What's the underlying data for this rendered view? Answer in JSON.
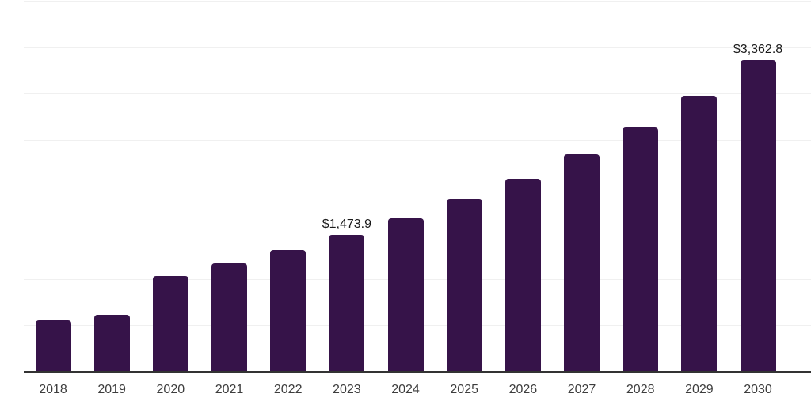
{
  "chart_data": {
    "type": "bar",
    "title": "",
    "xlabel": "",
    "ylabel": "",
    "categories": [
      "2018",
      "2019",
      "2020",
      "2021",
      "2022",
      "2023",
      "2024",
      "2025",
      "2026",
      "2027",
      "2028",
      "2029",
      "2030"
    ],
    "values": [
      552,
      615,
      1035,
      1165,
      1315,
      1473.9,
      1655,
      1858,
      2085,
      2350,
      2640,
      2975,
      3362.8
    ],
    "data_labels": [
      "",
      "",
      "",
      "",
      "",
      "$1,473.9",
      "",
      "",
      "",
      "",
      "",
      "",
      "$3,362.8"
    ],
    "ylim": [
      0,
      4000
    ],
    "gridline_step": 500,
    "grid": "on",
    "legend": "none",
    "y_tick_labels_visible": false,
    "colors": {
      "bar": "#361349",
      "gridline": "#f0f0f0",
      "axis_line": "#333333",
      "axis_label_text": "#3d3d3d",
      "data_label_text": "#1a1a1a",
      "background": "#ffffff"
    }
  }
}
